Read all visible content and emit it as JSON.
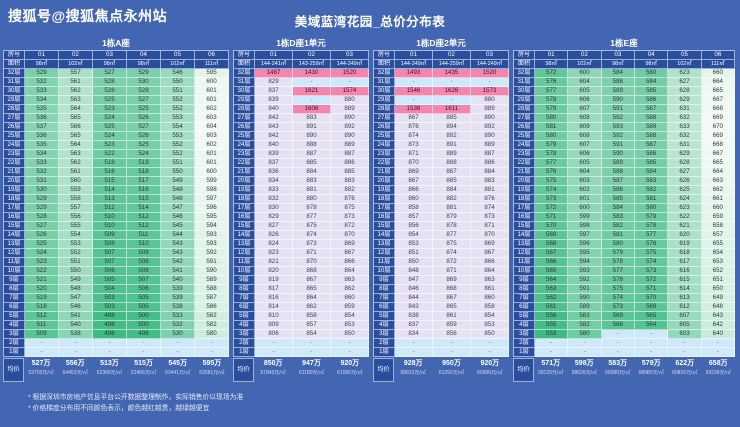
{
  "page": {
    "account": "搜狐号@搜狐焦点永州站",
    "title": "美域蓝湾花园_总价分布表"
  },
  "labels": {
    "room": "房号",
    "area": "面积",
    "avg": "均价"
  },
  "floors": [
    "32层",
    "31层",
    "30层",
    "29层",
    "28层",
    "27层",
    "26层",
    "25层",
    "24层",
    "23层",
    "22层",
    "21层",
    "20层",
    "19层",
    "18层",
    "17层",
    "16层",
    "15层",
    "14层",
    "13层",
    "12层",
    "11层",
    "10层",
    "9层",
    "8层",
    "7层",
    "6层",
    "5层",
    "4层",
    "3层",
    "2层",
    "1层"
  ],
  "footnotes": [
    "* 根据深圳市房地产信息平台公开数据整理制作，实际销售价以现场为准",
    "* 价格梯度分布用不同颜色表示，颜色越红越贵，越绿越便宜"
  ],
  "colors": {
    "background": "#4366b3",
    "header_cell": "#2a4e9e",
    "dash_cell": "#cfe8fa",
    "dash_text": "#4b6f92",
    "pink_cell": "#f286ae",
    "pink_text": "#471328",
    "lavender_cell": "#e7e2f3",
    "lavender_text": "#403e58",
    "green_low": "#3eba83",
    "green_high": "#f3faf6",
    "green_text": "#2c3a33"
  },
  "chart_data": [
    {
      "type": "heatmap",
      "caption": "1栋A座",
      "palette": "green",
      "unit_note": "总价(万)",
      "columns": [
        "01",
        "02",
        "03",
        "04",
        "05",
        "06"
      ],
      "areas": [
        "98㎡",
        "102㎡",
        "98㎡",
        "98㎡",
        "102㎡",
        "111㎡"
      ],
      "rows": [
        [
          529,
          557,
          527,
          529,
          546,
          595
        ],
        [
          532,
          561,
          528,
          530,
          550,
          600
        ],
        [
          533,
          562,
          526,
          528,
          551,
          601
        ],
        [
          534,
          563,
          525,
          527,
          552,
          601
        ],
        [
          535,
          564,
          523,
          525,
          552,
          602
        ],
        [
          536,
          565,
          524,
          526,
          553,
          603
        ],
        [
          537,
          566,
          525,
          527,
          554,
          604
        ],
        [
          536,
          565,
          524,
          526,
          553,
          603
        ],
        [
          535,
          564,
          523,
          525,
          552,
          602
        ],
        [
          534,
          563,
          522,
          524,
          552,
          601
        ],
        [
          533,
          562,
          518,
          519,
          551,
          601
        ],
        [
          532,
          561,
          516,
          518,
          550,
          600
        ],
        [
          531,
          560,
          515,
          517,
          549,
          599
        ],
        [
          530,
          559,
          514,
          516,
          548,
          598
        ],
        [
          529,
          558,
          513,
          515,
          548,
          597
        ],
        [
          529,
          557,
          512,
          514,
          547,
          596
        ],
        [
          528,
          556,
          510,
          512,
          546,
          595
        ],
        [
          527,
          555,
          510,
          512,
          545,
          594
        ],
        [
          526,
          554,
          509,
          511,
          544,
          593
        ],
        [
          525,
          553,
          508,
          510,
          543,
          593
        ],
        [
          524,
          552,
          507,
          509,
          543,
          592
        ],
        [
          523,
          551,
          507,
          508,
          542,
          591
        ],
        [
          522,
          550,
          506,
          508,
          541,
          590
        ],
        [
          521,
          549,
          505,
          507,
          540,
          589
        ],
        [
          520,
          548,
          504,
          506,
          539,
          588
        ],
        [
          519,
          547,
          503,
          505,
          539,
          587
        ],
        [
          518,
          546,
          503,
          505,
          538,
          586
        ],
        [
          512,
          541,
          498,
          500,
          533,
          582
        ],
        [
          511,
          540,
          498,
          500,
          532,
          582
        ],
        [
          509,
          538,
          496,
          498,
          530,
          580
        ],
        [
          "-",
          "-",
          "-",
          "-",
          "-",
          "-"
        ],
        [
          "-",
          "-",
          "-",
          "-",
          "-",
          "-"
        ]
      ],
      "avg": [
        {
          "total": "527万",
          "unit": "53703元/㎡"
        },
        {
          "total": "556万",
          "unit": "54453元/㎡"
        },
        {
          "total": "513万",
          "unit": "52366元/㎡"
        },
        {
          "total": "515万",
          "unit": "52466元/㎡"
        },
        {
          "total": "545万",
          "unit": "53441元/㎡"
        },
        {
          "total": "595万",
          "unit": "53581元/㎡"
        }
      ]
    },
    {
      "type": "heatmap",
      "caption": "1栋D座1单元",
      "palette": "pink",
      "unit_note": "总价(万)",
      "columns": [
        "01",
        "02",
        "03"
      ],
      "areas": [
        "144-241㎡",
        "143-259㎡",
        "144-249㎡"
      ],
      "rows": [
        [
          1487,
          1430,
          1520
        ],
        [
          829,
          "-",
          "-"
        ],
        [
          837,
          1621,
          1574
        ],
        [
          839,
          "-",
          880
        ],
        [
          840,
          1606,
          889
        ],
        [
          842,
          883,
          890
        ],
        [
          843,
          891,
          892
        ],
        [
          842,
          890,
          890
        ],
        [
          840,
          888,
          889
        ],
        [
          839,
          887,
          887
        ],
        [
          837,
          885,
          886
        ],
        [
          836,
          884,
          885
        ],
        [
          834,
          883,
          883
        ],
        [
          833,
          881,
          882
        ],
        [
          832,
          880,
          876
        ],
        [
          830,
          878,
          875
        ],
        [
          829,
          877,
          873
        ],
        [
          827,
          875,
          872
        ],
        [
          826,
          874,
          870
        ],
        [
          824,
          873,
          869
        ],
        [
          823,
          871,
          867
        ],
        [
          821,
          870,
          866
        ],
        [
          820,
          868,
          864
        ],
        [
          819,
          867,
          863
        ],
        [
          817,
          865,
          862
        ],
        [
          816,
          864,
          860
        ],
        [
          814,
          862,
          859
        ],
        [
          810,
          858,
          854
        ],
        [
          809,
          857,
          853
        ],
        [
          806,
          854,
          850
        ],
        [
          "-",
          "-",
          "-"
        ],
        [
          "-",
          "-",
          "-"
        ]
      ],
      "avg": [
        {
          "total": "850万",
          "unit": "57843元/㎡"
        },
        {
          "total": "947万",
          "unit": "61180元/㎡"
        },
        {
          "total": "920万",
          "unit": "61006元/㎡"
        }
      ]
    },
    {
      "type": "heatmap",
      "caption": "1栋D座2单元",
      "palette": "pink",
      "unit_note": "总价(万)",
      "columns": [
        "01",
        "02",
        "03"
      ],
      "areas": [
        "144-249㎡",
        "144-259㎡",
        "144-249㎡"
      ],
      "rows": [
        [
          1493,
          1435,
          1520
        ],
        [
          "-",
          "-",
          "-"
        ],
        [
          1546,
          1626,
          1573
        ],
        [
          "-",
          "-",
          880
        ],
        [
          1538,
          1611,
          889
        ],
        [
          867,
          885,
          890
        ],
        [
          876,
          894,
          892
        ],
        [
          874,
          892,
          890
        ],
        [
          873,
          891,
          889
        ],
        [
          871,
          889,
          887
        ],
        [
          870,
          888,
          886
        ],
        [
          869,
          887,
          884
        ],
        [
          867,
          885,
          883
        ],
        [
          866,
          884,
          881
        ],
        [
          860,
          882,
          876
        ],
        [
          858,
          881,
          874
        ],
        [
          857,
          879,
          873
        ],
        [
          856,
          878,
          871
        ],
        [
          854,
          877,
          870
        ],
        [
          853,
          875,
          869
        ],
        [
          851,
          874,
          867
        ],
        [
          850,
          872,
          866
        ],
        [
          848,
          871,
          864
        ],
        [
          847,
          869,
          863
        ],
        [
          846,
          868,
          861
        ],
        [
          844,
          867,
          860
        ],
        [
          843,
          865,
          858
        ],
        [
          838,
          861,
          854
        ],
        [
          837,
          859,
          853
        ],
        [
          834,
          856,
          850
        ],
        [
          "-",
          "-",
          "-"
        ],
        [
          "-",
          "-",
          "-"
        ]
      ],
      "avg": [
        {
          "total": "928万",
          "unit": "58812元/㎡"
        },
        {
          "total": "950万",
          "unit": "61292元/㎡"
        },
        {
          "total": "920万",
          "unit": "60906元/㎡"
        }
      ]
    },
    {
      "type": "heatmap",
      "caption": "1栋E座",
      "palette": "green",
      "unit_note": "总价(万)",
      "columns": [
        "01",
        "02",
        "03",
        "04",
        "05",
        "06"
      ],
      "areas": [
        "98㎡",
        "102㎡",
        "98㎡",
        "98㎡",
        "102㎡",
        "111㎡"
      ],
      "rows": [
        [
          572,
          600,
          584,
          580,
          623,
          660
        ],
        [
          576,
          604,
          588,
          584,
          627,
          664
        ],
        [
          577,
          605,
          589,
          585,
          628,
          665
        ],
        [
          578,
          606,
          590,
          586,
          629,
          667
        ],
        [
          579,
          607,
          591,
          587,
          631,
          668
        ],
        [
          580,
          608,
          592,
          588,
          632,
          669
        ],
        [
          581,
          609,
          593,
          589,
          633,
          670
        ],
        [
          580,
          608,
          592,
          588,
          632,
          669
        ],
        [
          579,
          607,
          591,
          587,
          631,
          668
        ],
        [
          578,
          606,
          590,
          586,
          629,
          667
        ],
        [
          577,
          605,
          589,
          585,
          628,
          665
        ],
        [
          576,
          604,
          588,
          584,
          627,
          664
        ],
        [
          575,
          603,
          587,
          583,
          626,
          663
        ],
        [
          574,
          602,
          586,
          582,
          625,
          662
        ],
        [
          573,
          601,
          585,
          581,
          624,
          661
        ],
        [
          572,
          600,
          584,
          580,
          623,
          660
        ],
        [
          571,
          599,
          583,
          579,
          622,
          659
        ],
        [
          570,
          598,
          582,
          578,
          621,
          658
        ],
        [
          569,
          597,
          581,
          577,
          620,
          657
        ],
        [
          568,
          596,
          580,
          576,
          619,
          655
        ],
        [
          567,
          595,
          579,
          575,
          618,
          654
        ],
        [
          566,
          594,
          578,
          574,
          617,
          653
        ],
        [
          565,
          593,
          577,
          573,
          616,
          652
        ],
        [
          564,
          592,
          576,
          572,
          615,
          651
        ],
        [
          563,
          591,
          575,
          571,
          614,
          650
        ],
        [
          562,
          590,
          574,
          570,
          613,
          649
        ],
        [
          561,
          589,
          573,
          569,
          612,
          648
        ],
        [
          556,
          583,
          569,
          565,
          607,
          643
        ],
        [
          555,
          582,
          568,
          564,
          605,
          642
        ],
        [
          553,
          580,
          "-",
          "-",
          603,
          640
        ],
        [
          "-",
          "-",
          "-",
          "-",
          "-",
          "-"
        ],
        [
          "-",
          "-",
          "-",
          "-",
          "-",
          "-"
        ]
      ],
      "avg": [
        {
          "total": "571万",
          "unit": "58126元/㎡"
        },
        {
          "total": "598万",
          "unit": "58626元/㎡"
        },
        {
          "total": "583万",
          "unit": "59380元/㎡"
        },
        {
          "total": "579万",
          "unit": "58980元/㎡"
        },
        {
          "total": "622万",
          "unit": "60826元/㎡"
        },
        {
          "total": "658万",
          "unit": "59238元/㎡"
        }
      ]
    }
  ]
}
